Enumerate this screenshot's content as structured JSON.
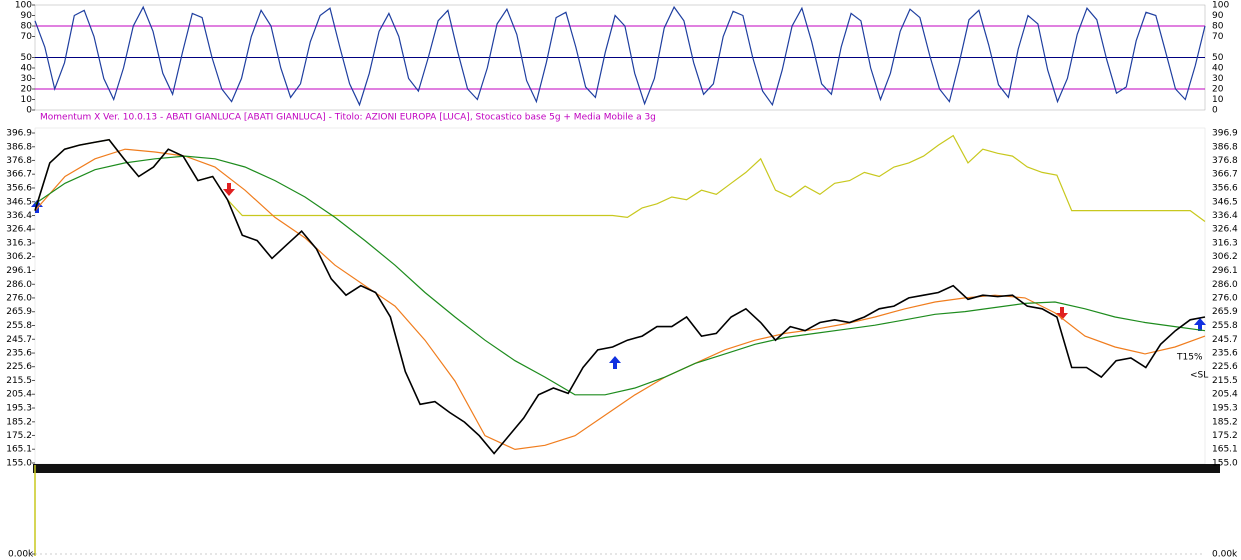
{
  "chart_data": [
    {
      "type": "line",
      "title": "Momentum X   Ver. 10.0.13  -  ABATI GIANLUCA  [ABATI GIANLUCA] - Titolo: AZIONI EUROPA  [LUCA],   Stocastico base 5g + Media Mobile a 3g",
      "ylim": [
        0,
        100
      ],
      "yticks": [
        0,
        10,
        20,
        30,
        40,
        50,
        70,
        80,
        90,
        100
      ],
      "reference_lines": [
        {
          "value": 80,
          "color": "#c000c0"
        },
        {
          "value": 50,
          "color": "#000080"
        },
        {
          "value": 20,
          "color": "#c000c0"
        }
      ],
      "series": [
        {
          "color": "#1f3fa0",
          "values": [
            85,
            60,
            20,
            45,
            90,
            95,
            70,
            30,
            10,
            40,
            80,
            98,
            75,
            35,
            15,
            55,
            92,
            88,
            50,
            20,
            8,
            30,
            70,
            95,
            80,
            40,
            12,
            25,
            65,
            90,
            97,
            60,
            25,
            5,
            35,
            75,
            92,
            70,
            30,
            18,
            50,
            85,
            95,
            55,
            20,
            10,
            40,
            82,
            96,
            72,
            28,
            8,
            45,
            88,
            93,
            60,
            22,
            12,
            55,
            90,
            80,
            35,
            6,
            30,
            78,
            98,
            85,
            45,
            15,
            25,
            70,
            94,
            90,
            50,
            18,
            5,
            38,
            80,
            97,
            65,
            25,
            15,
            60,
            92,
            85,
            40,
            10,
            35,
            75,
            96,
            88,
            52,
            20,
            8,
            45,
            86,
            95,
            62,
            24,
            12,
            58,
            90,
            82,
            38,
            8,
            30,
            72,
            97,
            86,
            48,
            16,
            22,
            66,
            93,
            90,
            55,
            20,
            10,
            42,
            80
          ]
        }
      ]
    },
    {
      "type": "line",
      "ylim": [
        155.0,
        396.9
      ],
      "yticks": [
        {
          "value": 155.0,
          "label": "155.0"
        },
        165.1,
        175.2,
        185.2,
        195.3,
        205.4,
        215.5,
        225.6,
        235.6,
        245.7,
        255.8,
        265.9,
        {
          "value": 276.0,
          "label": "276.0"
        },
        {
          "value": 286.0,
          "label": "286.0"
        },
        296.1,
        306.2,
        316.3,
        326.4,
        336.4,
        346.5,
        356.6,
        366.7,
        376.8,
        386.8,
        396.9
      ],
      "annotations": [
        {
          "text": "T15%",
          "color": "#1e8c1e"
        },
        {
          "text": "<SL",
          "color": "#000080"
        }
      ],
      "series": [
        {
          "color": "#c8c81e",
          "values": [
            340,
            375,
            385,
            388,
            390,
            392,
            378,
            365,
            372,
            385,
            380,
            362,
            365,
            348,
            336.4,
            336.4,
            336.4,
            336.4,
            336.4,
            336.4,
            336.4,
            336.4,
            336.4,
            336.4,
            336.4,
            336.4,
            336.4,
            336.4,
            336.4,
            336.4,
            336.4,
            336.4,
            336.4,
            336.4,
            336.4,
            336.4,
            336.4,
            336.4,
            336.4,
            336.4,
            335,
            342,
            345,
            350,
            348,
            355,
            352,
            360,
            368,
            378,
            355,
            350,
            358,
            352,
            360,
            362,
            368,
            365,
            372,
            375,
            380,
            388,
            395,
            375,
            385,
            382,
            380,
            372,
            368,
            366,
            340,
            340,
            340,
            340,
            340,
            340,
            340,
            340,
            340,
            332
          ]
        },
        {
          "color": "#f07d1e",
          "values": [
            340,
            365,
            378,
            385,
            383,
            380,
            372,
            355,
            335,
            320,
            300,
            285,
            270,
            245,
            215,
            175,
            165,
            168,
            175,
            190,
            205,
            218,
            228,
            238,
            245,
            250,
            253,
            257,
            262,
            268,
            273,
            276,
            278,
            276,
            265,
            248,
            240,
            235,
            240,
            248
          ]
        },
        {
          "color": "#1e8c1e",
          "values": [
            345,
            360,
            370,
            375,
            378,
            380,
            378,
            372,
            362,
            350,
            335,
            318,
            300,
            280,
            262,
            245,
            230,
            218,
            205,
            205,
            210,
            218,
            228,
            235,
            242,
            247,
            250,
            253,
            256,
            260,
            264,
            266,
            269,
            272,
            273,
            268,
            262,
            258,
            255,
            252
          ]
        },
        {
          "color": "#000000",
          "values": [
            340,
            375,
            385,
            388,
            390,
            392,
            378,
            365,
            372,
            385,
            380,
            362,
            365,
            348,
            322,
            318,
            305,
            315,
            325,
            312,
            290,
            278,
            285,
            280,
            262,
            222,
            198,
            200,
            192,
            185,
            175,
            162,
            175,
            188,
            205,
            210,
            206,
            225,
            238,
            240,
            245,
            248,
            255,
            255,
            262,
            248,
            250,
            262,
            268,
            258,
            245,
            255,
            252,
            258,
            260,
            258,
            262,
            268,
            270,
            276,
            278,
            280,
            285,
            275,
            278,
            277,
            278,
            270,
            268,
            262,
            225,
            225,
            218,
            230,
            232,
            225,
            242,
            252,
            260,
            262
          ]
        }
      ]
    },
    {
      "type": "bar",
      "yticks": [
        {
          "value": 0,
          "label": "0.00k"
        }
      ]
    }
  ]
}
